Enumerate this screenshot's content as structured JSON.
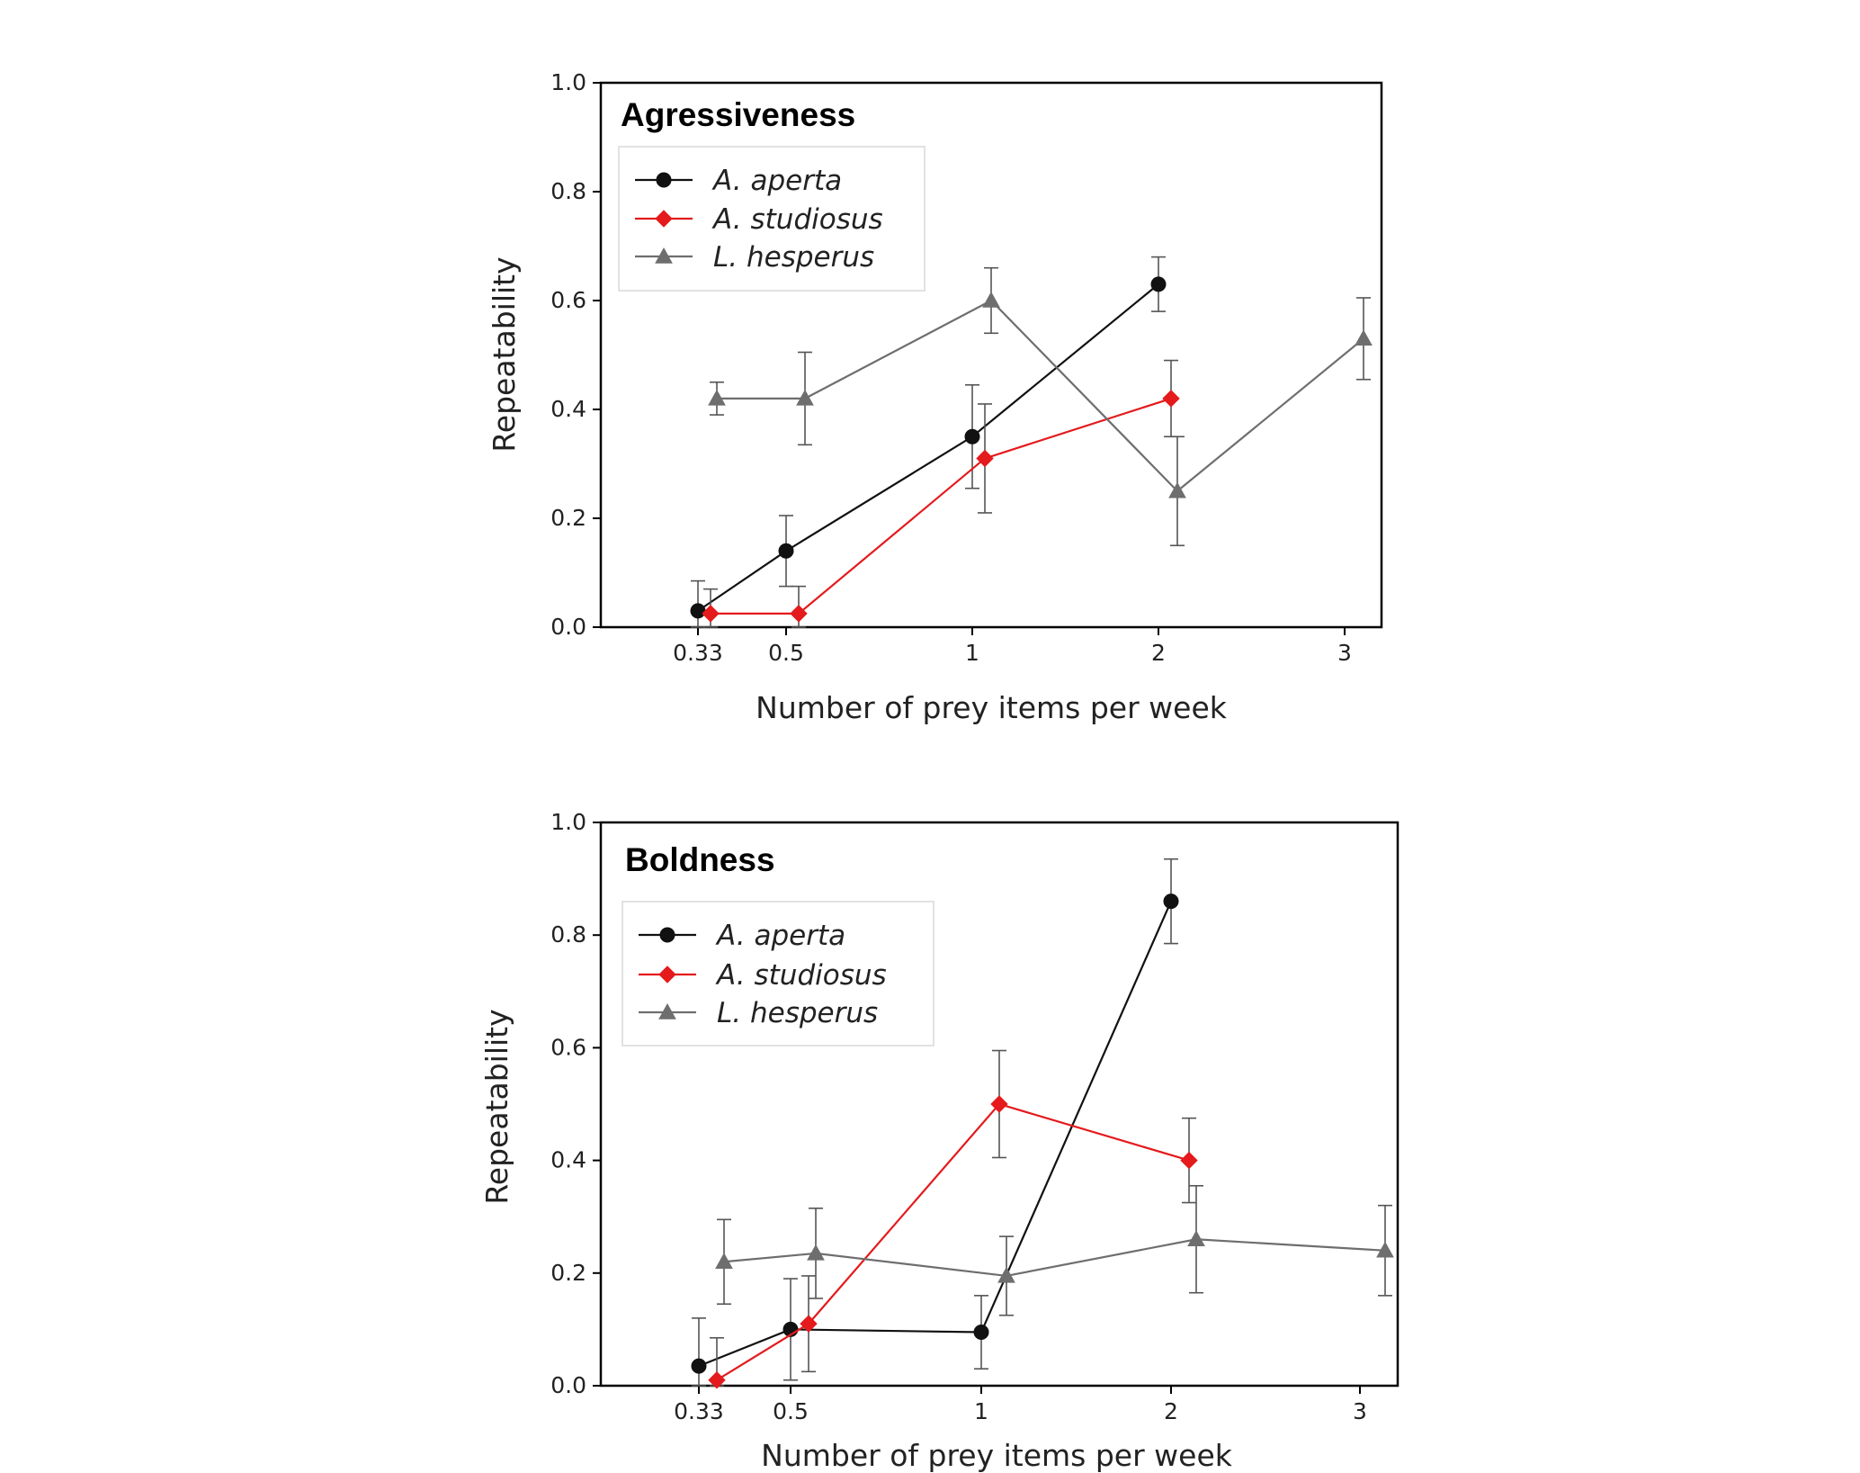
{
  "chart_data": [
    {
      "type": "line",
      "title": "Agressiveness",
      "xlabel": "Number of prey items per week",
      "ylabel": "Repeatability",
      "ylim": [
        0,
        1
      ],
      "y_ticks": [
        "0.0",
        "0.2",
        "0.4",
        "0.6",
        "0.8",
        "1.0"
      ],
      "x_ticks": [
        "0.33",
        "0.5",
        "1",
        "2",
        "3"
      ],
      "legend_position": "upper-left",
      "grid": false,
      "series": [
        {
          "name": "A. aperta",
          "color": "#111111",
          "marker": "circle",
          "x": [
            "0.33",
            "0.5",
            "1",
            "2"
          ],
          "y": [
            0.03,
            0.14,
            0.35,
            0.63
          ],
          "err": [
            0.055,
            0.065,
            0.095,
            0.05
          ]
        },
        {
          "name": "A. studiosus",
          "color": "#e41a1c",
          "marker": "diamond",
          "x": [
            "0.33",
            "0.5",
            "1",
            "2"
          ],
          "y": [
            0.025,
            0.025,
            0.31,
            0.42
          ],
          "err": [
            0.045,
            0.05,
            0.1,
            0.07
          ]
        },
        {
          "name": "L. hesperus",
          "color": "#6e6e6e",
          "marker": "triangle",
          "x": [
            "0.33",
            "0.5",
            "1",
            "2",
            "3"
          ],
          "y": [
            0.42,
            0.42,
            0.6,
            0.25,
            0.53
          ],
          "err": [
            0.03,
            0.085,
            0.06,
            0.1,
            0.075
          ]
        }
      ]
    },
    {
      "type": "line",
      "title": "Boldness",
      "xlabel": "Number of prey items per week",
      "ylabel": "Repeatability",
      "ylim": [
        0,
        1
      ],
      "y_ticks": [
        "0.0",
        "0.2",
        "0.4",
        "0.6",
        "0.8",
        "1.0"
      ],
      "x_ticks": [
        "0.33",
        "0.5",
        "1",
        "2",
        "3"
      ],
      "legend_position": "upper-left",
      "grid": false,
      "series": [
        {
          "name": "A. aperta",
          "color": "#111111",
          "marker": "circle",
          "x": [
            "0.33",
            "0.5",
            "1",
            "2"
          ],
          "y": [
            0.035,
            0.1,
            0.095,
            0.86
          ],
          "err": [
            0.085,
            0.09,
            0.065,
            0.075
          ]
        },
        {
          "name": "A. studiosus",
          "color": "#e41a1c",
          "marker": "diamond",
          "x": [
            "0.33",
            "0.5",
            "1",
            "2"
          ],
          "y": [
            0.01,
            0.11,
            0.5,
            0.4
          ],
          "err": [
            0.075,
            0.085,
            0.095,
            0.075
          ]
        },
        {
          "name": "L. hesperus",
          "color": "#6e6e6e",
          "marker": "triangle",
          "x": [
            "0.33",
            "0.5",
            "1",
            "2",
            "3"
          ],
          "y": [
            0.22,
            0.235,
            0.195,
            0.26,
            0.24
          ],
          "err": [
            0.075,
            0.08,
            0.07,
            0.095,
            0.08
          ]
        }
      ]
    }
  ]
}
